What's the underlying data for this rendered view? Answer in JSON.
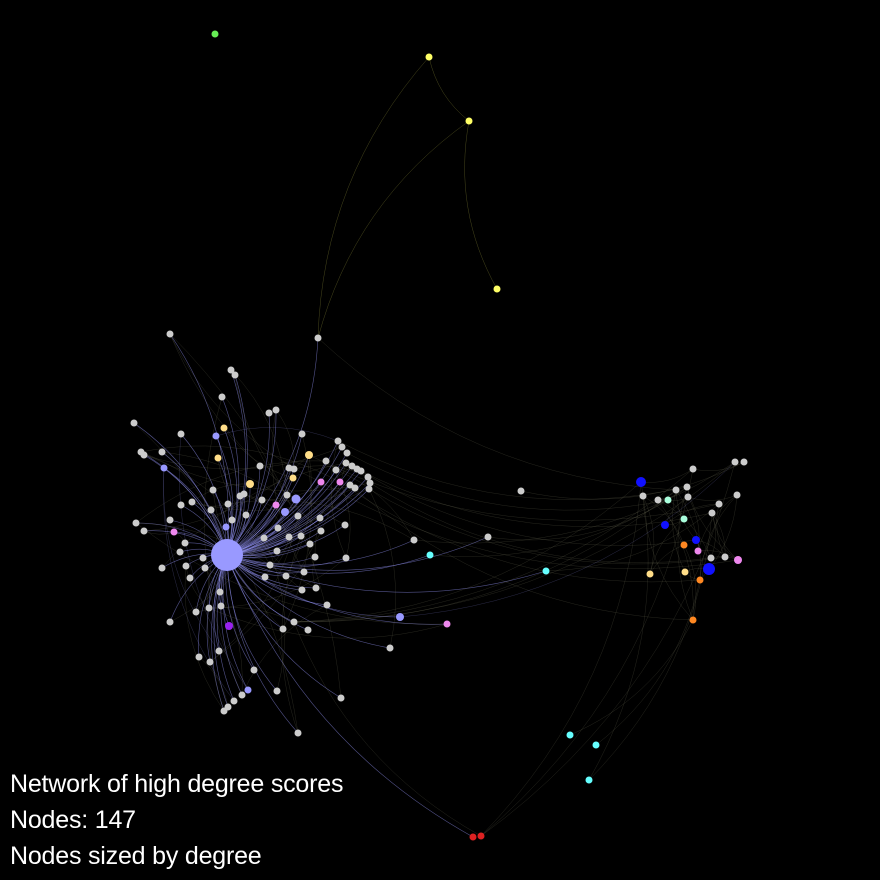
{
  "caption": {
    "title": "Network of high degree scores",
    "nodes_line": "Nodes: 147",
    "sizing_line": "Nodes sized by degree"
  },
  "colors": {
    "background": "#000000",
    "text": "#ffffff",
    "default_node": "#cccccc",
    "hub": "#9999ff",
    "yellow": "#ffff66",
    "green": "#66ee55",
    "cyan": "#66ffff",
    "blue": "#1111ff",
    "orange": "#ff8822",
    "pink": "#ee88ee",
    "light_yellow": "#ffdd88",
    "purple": "#9922ee",
    "red": "#dd2222",
    "mint": "#aaffdd",
    "edge": "#8a8a6a"
  }
}
